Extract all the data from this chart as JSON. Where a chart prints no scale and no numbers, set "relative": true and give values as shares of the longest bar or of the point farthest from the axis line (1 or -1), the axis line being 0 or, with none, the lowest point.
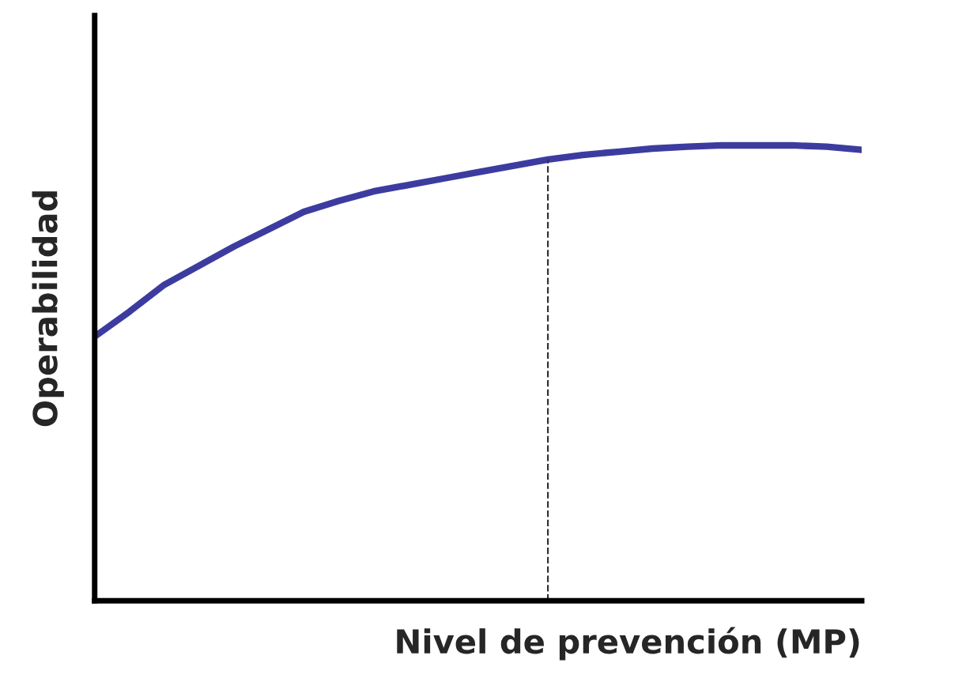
{
  "chart_data": {
    "type": "line",
    "relative": true,
    "xlabel": "Nivel de prevención (MP)",
    "ylabel": "Operabilidad",
    "categories": [
      null,
      null,
      null,
      null,
      null,
      null,
      null,
      null,
      null,
      null,
      null,
      null,
      null,
      null,
      null,
      null,
      null,
      null,
      null,
      null,
      null,
      null,
      null
    ],
    "series": [
      {
        "color": "#3c3ca0",
        "values": [
          0.58,
          0.635,
          0.694,
          0.736,
          0.778,
          0.816,
          0.854,
          0.878,
          0.899,
          0.913,
          0.927,
          0.941,
          0.955,
          0.969,
          0.979,
          0.986,
          0.993,
          0.997,
          1.0,
          1.0,
          1.0,
          0.997,
          0.99
        ]
      }
    ],
    "tick_labels": false,
    "marker": "none",
    "line_style": "solid"
  }
}
